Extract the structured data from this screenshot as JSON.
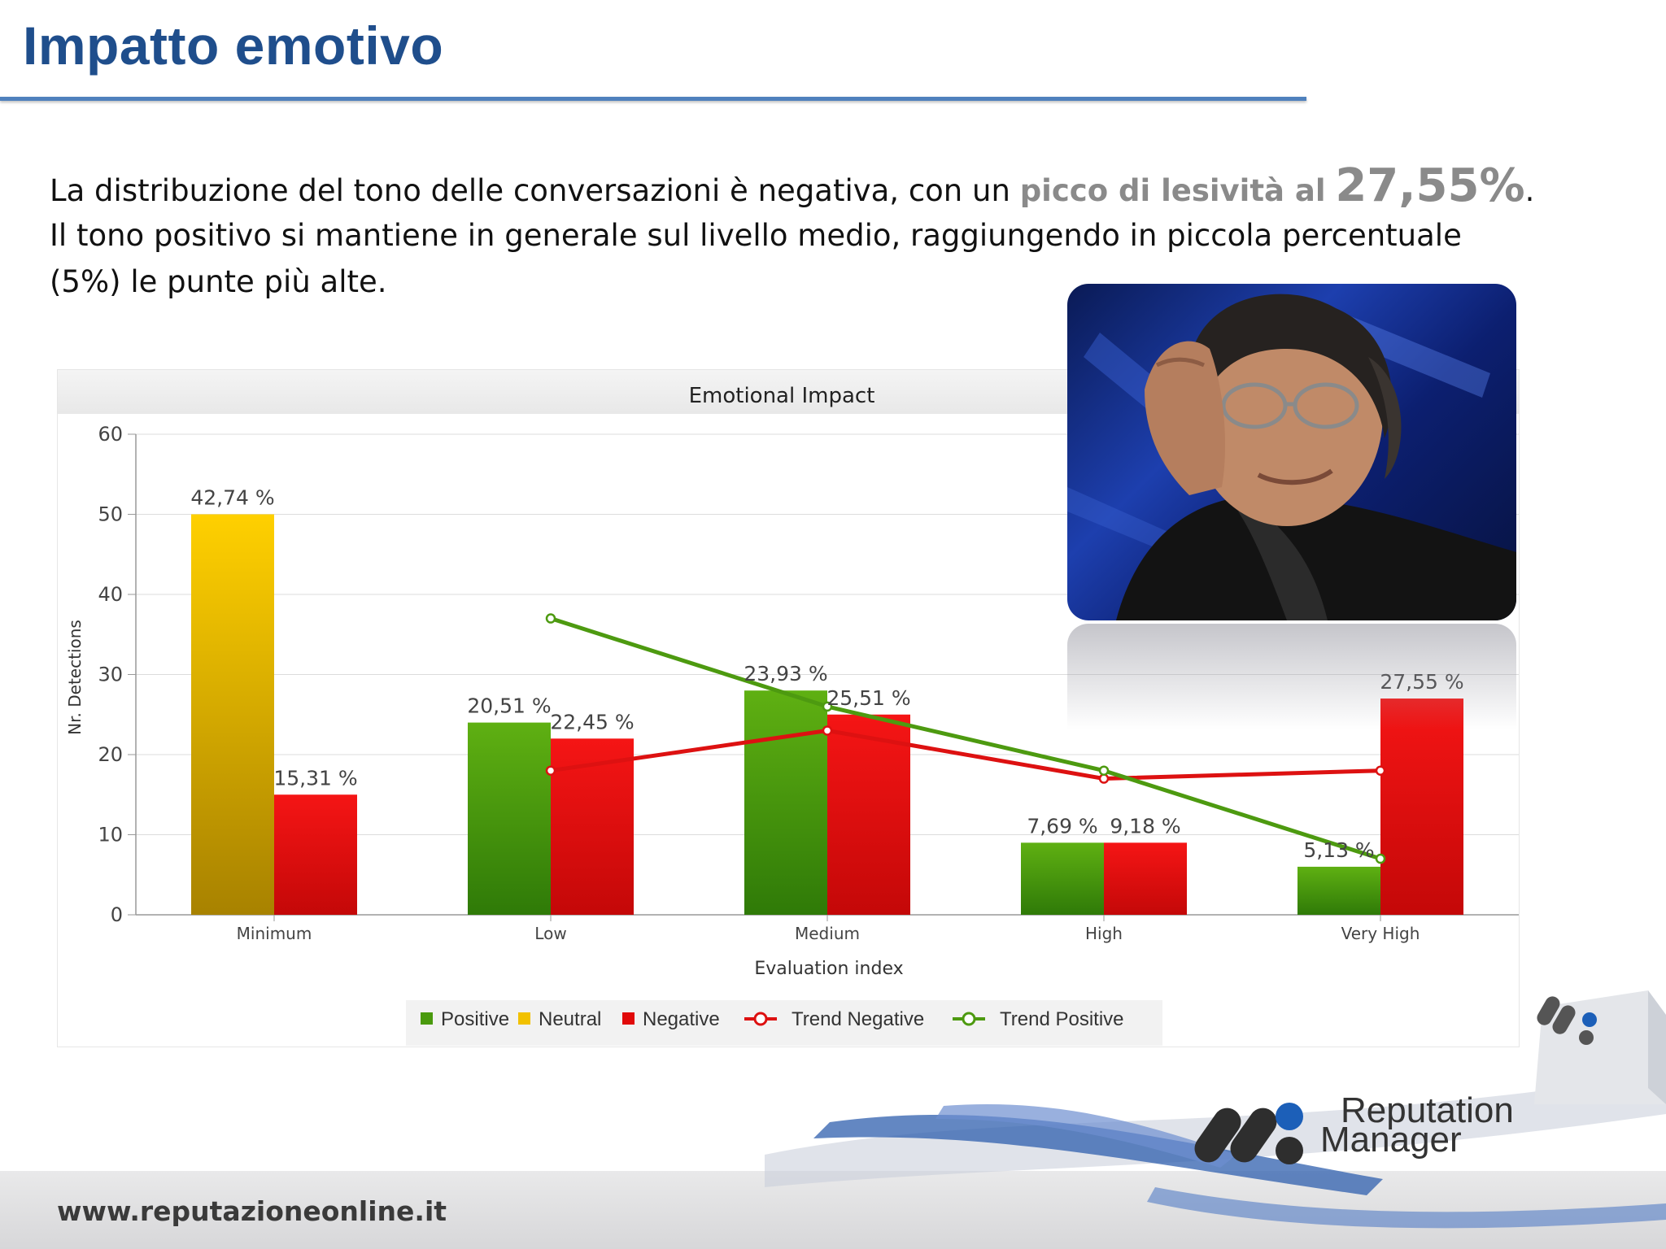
{
  "slide": {
    "title": "Impatto emotivo",
    "text": {
      "line1_prefix": "La distribuzione del tono delle conversazioni è negativa, con un",
      "line1_highlight": "picco di lesività al",
      "line1_value": "27,55%",
      "line1_suffix": ".",
      "line2": "Il tono positivo si mantiene in generale sul livello medio, raggiungendo in piccola percentuale",
      "line3": "(5%) le punte più alte."
    }
  },
  "footer": {
    "url": "www.reputazioneonline.it",
    "brand_line1": "Reputation",
    "brand_line2": "Manager"
  },
  "colors": {
    "title": "#1f4e8c",
    "positive": "#4a9a0e",
    "neutral": "#f2c100",
    "negative": "#e10a0a",
    "trend_negative": "#dd1111",
    "trend_positive": "#4d9a10"
  },
  "chart_data": {
    "type": "bar",
    "title": "Emotional Impact",
    "xlabel": "Evaluation index",
    "ylabel": "Nr. Detections",
    "ylim": [
      0,
      60
    ],
    "yticks": [
      0,
      10,
      20,
      30,
      40,
      50,
      60
    ],
    "grid": true,
    "legend_position": "bottom",
    "categories": [
      "Minimum",
      "Low",
      "Medium",
      "High",
      "Very High"
    ],
    "series": [
      {
        "name": "Positive",
        "type": "bar",
        "values": [
          null,
          24,
          28,
          9,
          6
        ],
        "labels": [
          null,
          "20,51 %",
          "23,93 %",
          "7,69 %",
          "5,13 %"
        ]
      },
      {
        "name": "Neutral",
        "type": "bar",
        "values": [
          50,
          null,
          null,
          null,
          null
        ],
        "labels": [
          "42,74 %",
          null,
          null,
          null,
          null
        ]
      },
      {
        "name": "Negative",
        "type": "bar",
        "values": [
          15,
          22,
          25,
          9,
          27
        ],
        "labels": [
          "15,31 %",
          "22,45 %",
          "25,51 %",
          "9,18 %",
          "27,55 %"
        ]
      },
      {
        "name": "Trend Negative",
        "type": "line",
        "values": [
          null,
          18,
          23,
          17,
          18
        ]
      },
      {
        "name": "Trend Positive",
        "type": "line",
        "values": [
          null,
          37,
          26,
          18,
          7
        ]
      }
    ]
  }
}
